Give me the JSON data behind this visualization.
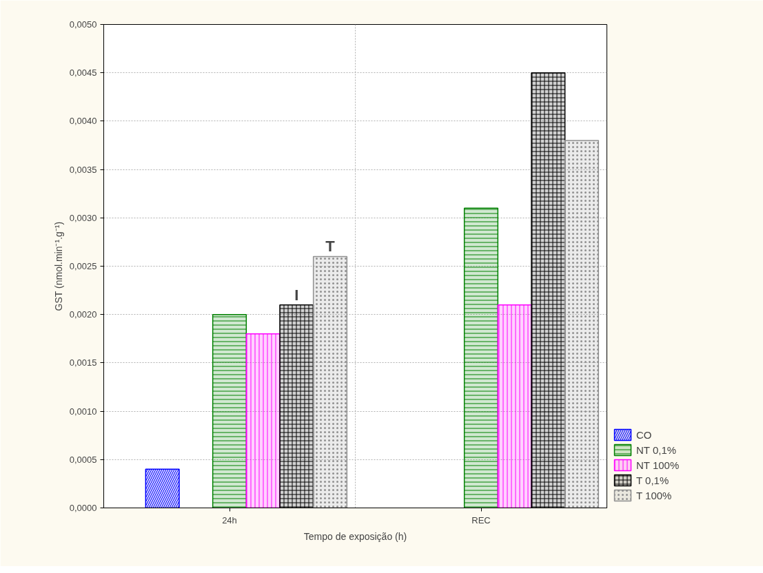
{
  "chart_data": {
    "type": "bar",
    "xlabel": "Tempo de exposição (h)",
    "ylabel": "GST (nmol.min⁻¹.g⁻¹)",
    "categories": [
      "24h",
      "REC"
    ],
    "series": [
      {
        "name": "CO",
        "color": "#0000ff",
        "values": [
          0.0004,
          null
        ]
      },
      {
        "name": "NT 0,1%",
        "color": "#008000",
        "values": [
          0.002,
          0.0031
        ]
      },
      {
        "name": "NT 100%",
        "color": "#ff00ff",
        "values": [
          0.0018,
          0.0021
        ]
      },
      {
        "name": "T 0,1%",
        "color": "#000000",
        "values": [
          0.0021,
          0.0045
        ]
      },
      {
        "name": "T 100%",
        "color": "#909090",
        "values": [
          0.0026,
          0.0038
        ]
      }
    ],
    "ylim": [
      0,
      0.005
    ],
    "yticks": [
      {
        "value": 0,
        "label": "0,0000"
      },
      {
        "value": 0.0005,
        "label": "0,0005"
      },
      {
        "value": 0.001,
        "label": "0,0010"
      },
      {
        "value": 0.0015,
        "label": "0,0015"
      },
      {
        "value": 0.002,
        "label": "0,0020"
      },
      {
        "value": 0.0025,
        "label": "0,0025"
      },
      {
        "value": 0.003,
        "label": "0,0030"
      },
      {
        "value": 0.0035,
        "label": "0,0035"
      },
      {
        "value": 0.004,
        "label": "0,0040"
      },
      {
        "value": 0.0045,
        "label": "0,0045"
      },
      {
        "value": 0.005,
        "label": "0,0050"
      }
    ],
    "annotations": [
      "I",
      "T"
    ],
    "grid": true,
    "legend": "bottom right"
  }
}
